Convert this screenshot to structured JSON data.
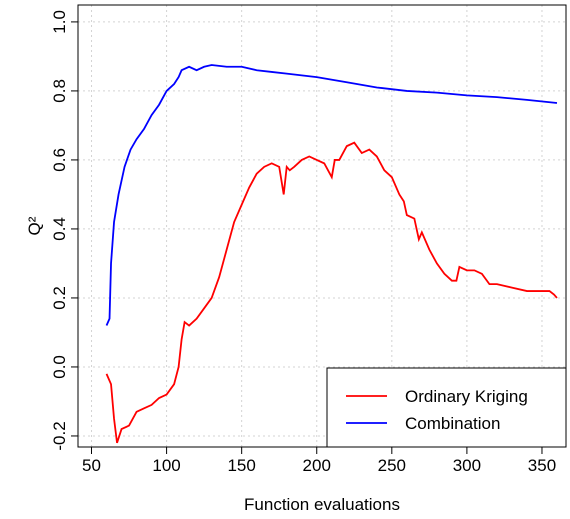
{
  "chart_data": {
    "type": "line",
    "xlabel": "Function evaluations",
    "ylabel": "Q²",
    "xlim": [
      41,
      366
    ],
    "ylim": [
      -0.232,
      1.049
    ],
    "xticks": [
      50,
      100,
      150,
      200,
      250,
      300,
      350
    ],
    "yticks": [
      {
        "value": -0.2,
        "label": "-0.2"
      },
      {
        "value": 0,
        "label": "0.0"
      },
      {
        "value": 0.2,
        "label": "0.2"
      },
      {
        "value": 0.4,
        "label": "0.4"
      },
      {
        "value": 0.6,
        "label": "0.6"
      },
      {
        "value": 0.8,
        "label": "0.8"
      },
      {
        "value": 1,
        "label": "1.0"
      }
    ],
    "grid": true,
    "legend": "bottom-right",
    "series": [
      {
        "name": "Ordinary Kriging",
        "color": "#ff0000",
        "x": [
          60,
          63,
          65,
          67,
          70,
          75,
          80,
          85,
          90,
          95,
          100,
          105,
          108,
          110,
          112,
          115,
          120,
          125,
          130,
          135,
          140,
          145,
          150,
          155,
          160,
          165,
          170,
          175,
          178,
          180,
          182,
          185,
          190,
          195,
          200,
          205,
          210,
          212,
          215,
          220,
          225,
          230,
          235,
          240,
          245,
          250,
          255,
          258,
          260,
          265,
          268,
          270,
          275,
          280,
          285,
          290,
          293,
          295,
          300,
          305,
          310,
          315,
          320,
          330,
          340,
          350,
          355,
          358,
          360
        ],
        "values": [
          -0.02,
          -0.05,
          -0.15,
          -0.22,
          -0.18,
          -0.17,
          -0.13,
          -0.12,
          -0.11,
          -0.09,
          -0.08,
          -0.05,
          0.0,
          0.08,
          0.13,
          0.12,
          0.14,
          0.17,
          0.2,
          0.26,
          0.34,
          0.42,
          0.47,
          0.52,
          0.56,
          0.58,
          0.59,
          0.58,
          0.5,
          0.58,
          0.57,
          0.58,
          0.6,
          0.61,
          0.6,
          0.59,
          0.55,
          0.6,
          0.6,
          0.64,
          0.65,
          0.62,
          0.63,
          0.61,
          0.57,
          0.55,
          0.5,
          0.48,
          0.44,
          0.43,
          0.37,
          0.39,
          0.34,
          0.3,
          0.27,
          0.25,
          0.25,
          0.29,
          0.28,
          0.28,
          0.27,
          0.24,
          0.24,
          0.23,
          0.22,
          0.22,
          0.22,
          0.21,
          0.2
        ]
      },
      {
        "name": "Combination",
        "color": "#0000ff",
        "x": [
          60,
          62,
          63,
          65,
          68,
          72,
          76,
          80,
          85,
          90,
          95,
          100,
          105,
          108,
          110,
          115,
          120,
          125,
          130,
          140,
          150,
          160,
          170,
          180,
          200,
          220,
          240,
          260,
          280,
          300,
          320,
          340,
          360
        ],
        "values": [
          0.12,
          0.14,
          0.3,
          0.42,
          0.5,
          0.58,
          0.63,
          0.66,
          0.69,
          0.73,
          0.76,
          0.8,
          0.82,
          0.84,
          0.86,
          0.87,
          0.86,
          0.87,
          0.875,
          0.87,
          0.87,
          0.86,
          0.855,
          0.85,
          0.84,
          0.825,
          0.81,
          0.8,
          0.795,
          0.787,
          0.782,
          0.774,
          0.765
        ]
      }
    ]
  }
}
